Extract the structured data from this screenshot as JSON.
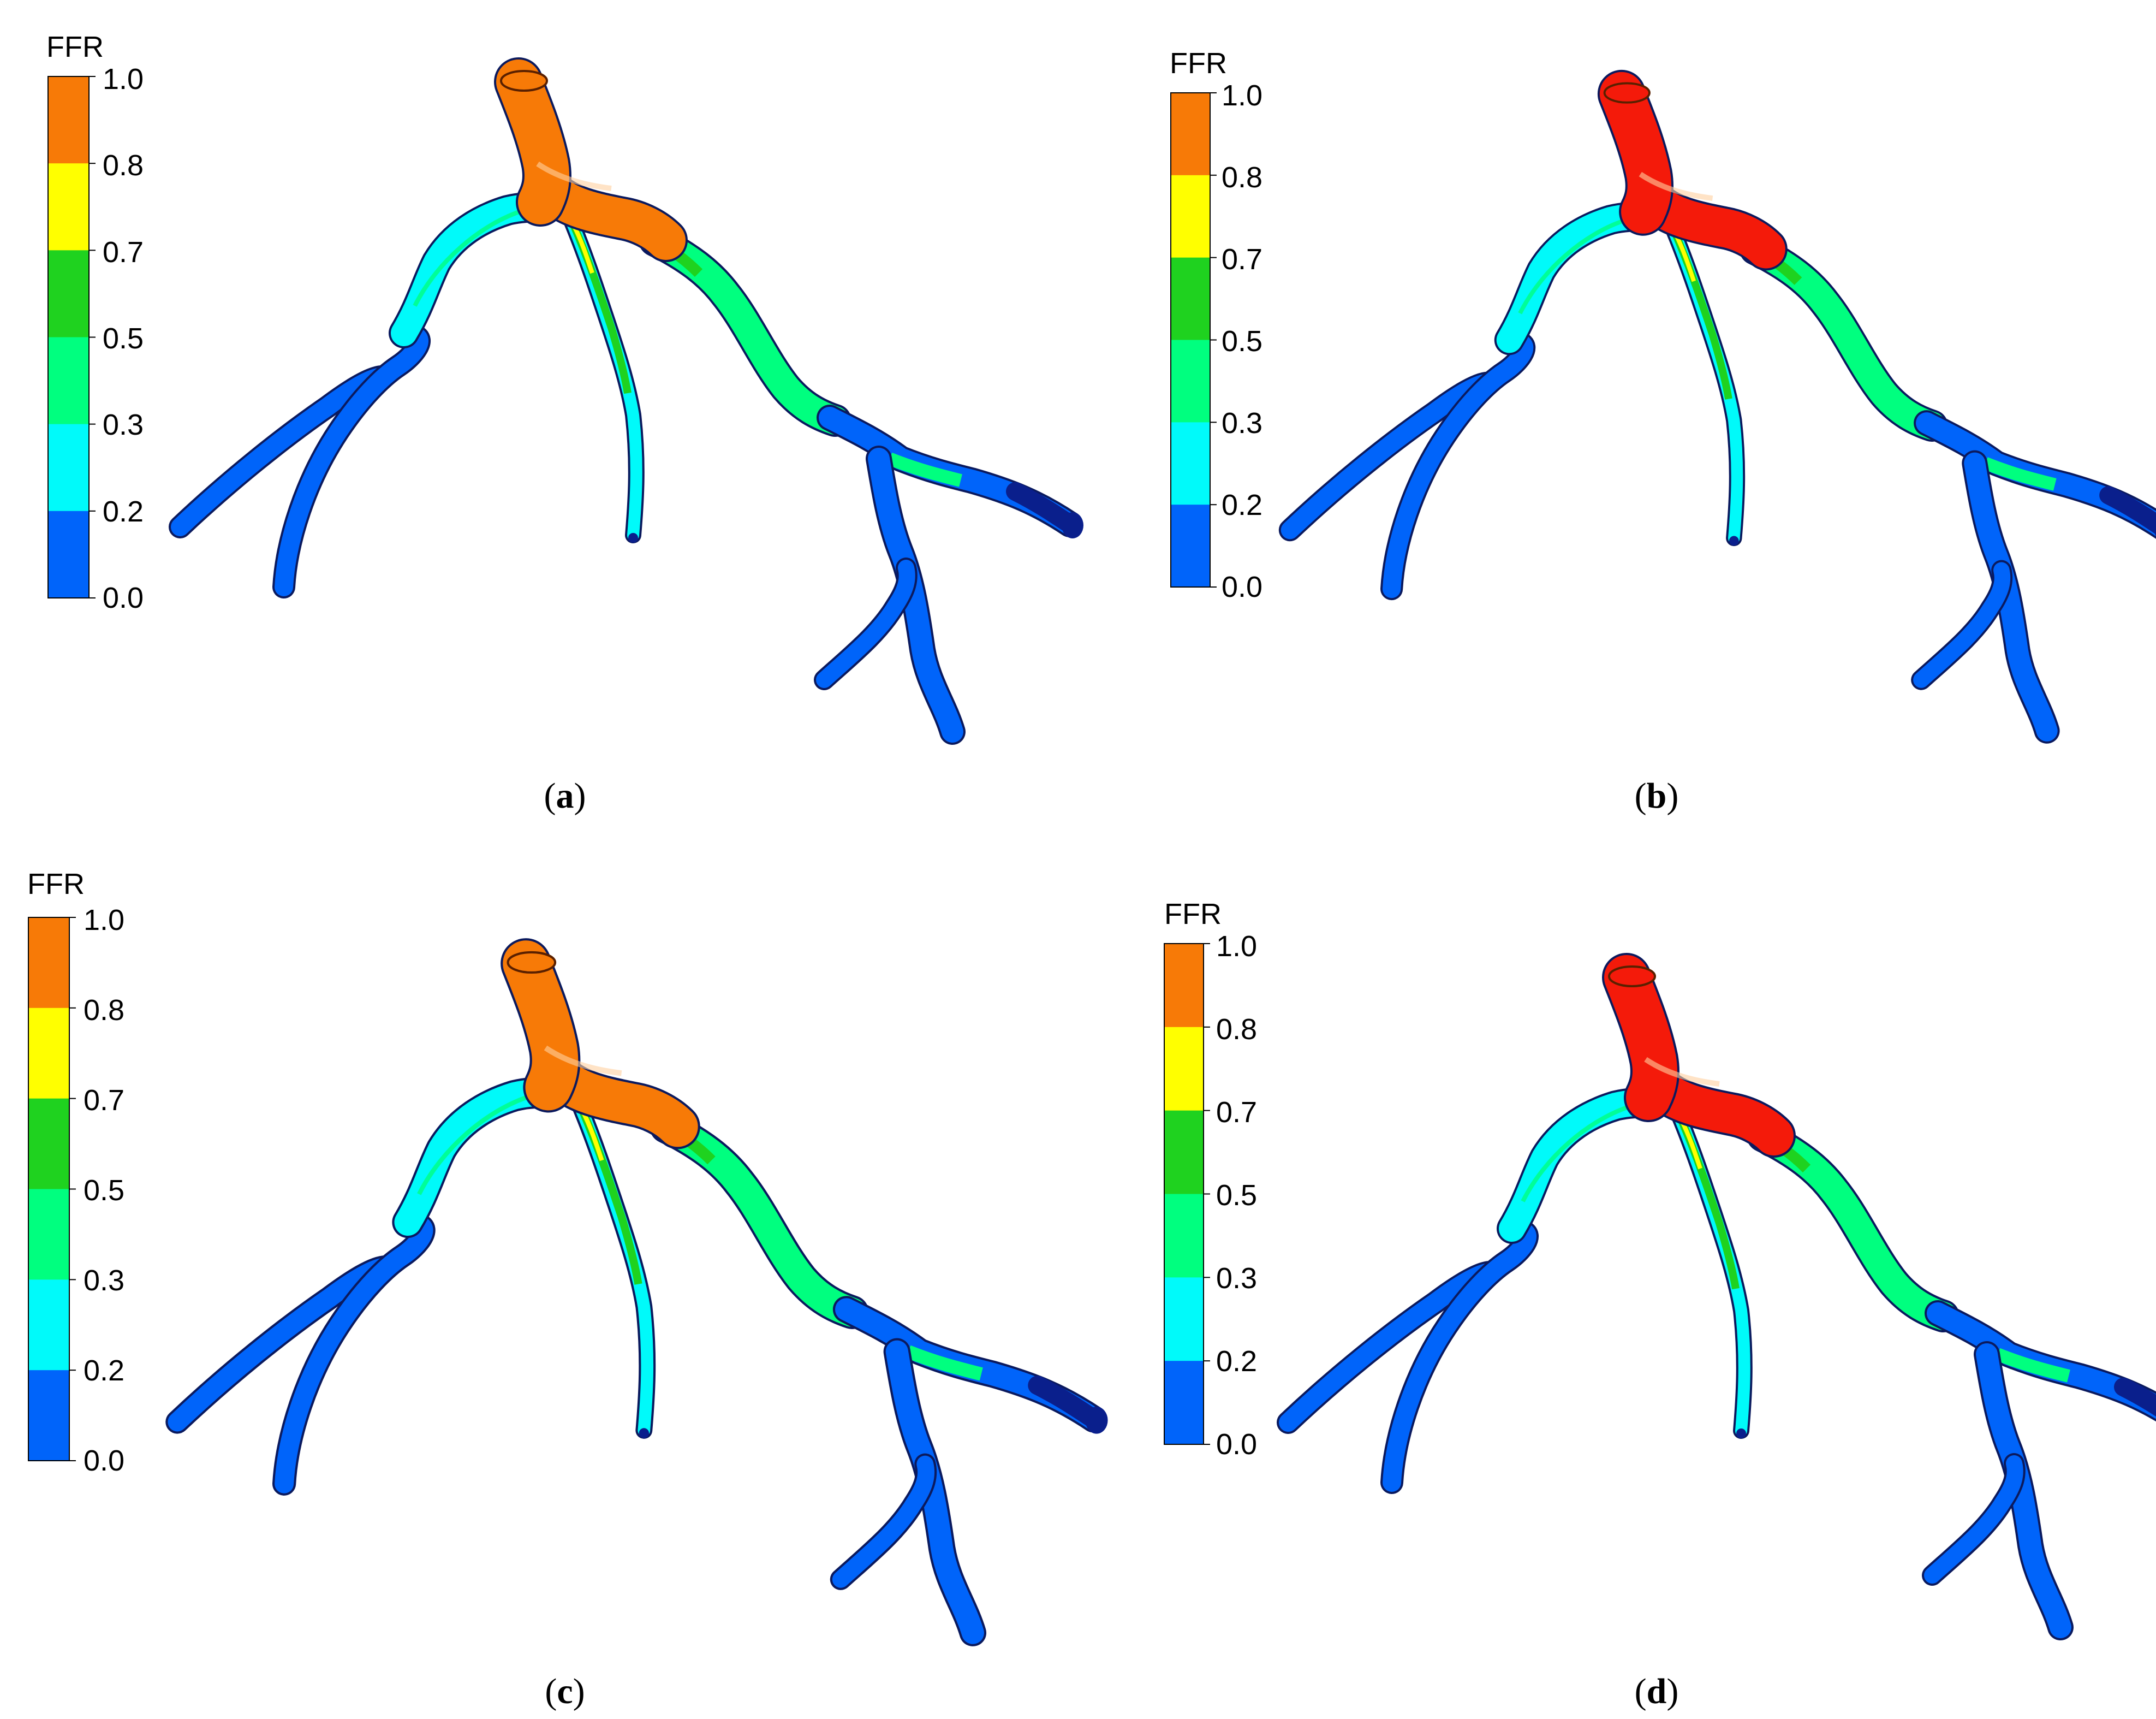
{
  "colorbar": {
    "title": "FFR",
    "ticks": [
      "1.0",
      "0.8",
      "0.7",
      "0.5",
      "0.3",
      "0.2",
      "0.0"
    ],
    "bands": [
      "#f77a07",
      "#ffff00",
      "#1fd21f",
      "#00ff7f",
      "#00fafa",
      "#0064fa"
    ]
  },
  "panels": [
    {
      "label": "a",
      "inlet_color": "#f77a07"
    },
    {
      "label": "b",
      "inlet_color": "#f41a0a"
    },
    {
      "label": "c",
      "inlet_color": "#f77a07"
    },
    {
      "label": "d",
      "inlet_color": "#f41a0a"
    }
  ]
}
